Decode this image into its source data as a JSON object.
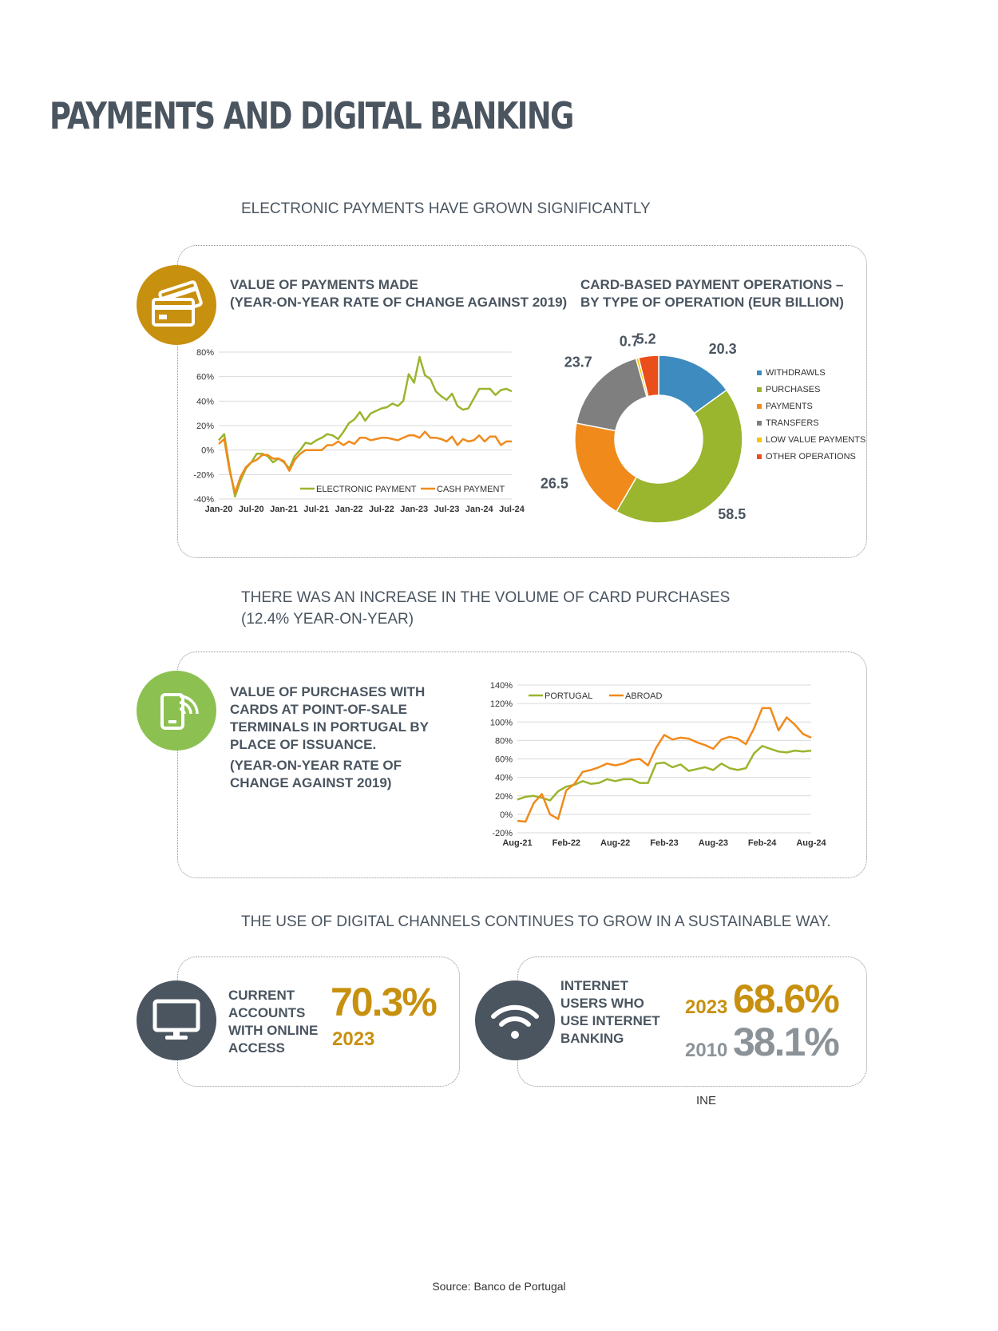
{
  "title": "PAYMENTS AND DIGITAL BANKING",
  "section1": {
    "heading": "ELECTRONIC PAYMENTS HAVE GROWN SIGNIFICANTLY",
    "line_chart_title_1": "VALUE OF PAYMENTS MADE",
    "line_chart_title_2": "(YEAR-ON-YEAR RATE OF CHANGE AGAINST 2019)",
    "donut_title_1": "CARD-BASED PAYMENT OPERATIONS –",
    "donut_title_2": "BY TYPE OF OPERATION (EUR BILLION)"
  },
  "section2": {
    "heading_1": "THERE WAS AN INCREASE IN THE VOLUME OF CARD PURCHASES",
    "heading_2": "(12.4% YEAR-ON-YEAR)",
    "text_1": "VALUE OF PURCHASES WITH",
    "text_2": "CARDS AT POINT-OF-SALE",
    "text_3": "TERMINALS IN PORTUGAL BY",
    "text_4": "PLACE OF ISSUANCE.",
    "text_5": "(YEAR-ON-YEAR RATE OF",
    "text_6": "CHANGE AGAINST 2019)"
  },
  "section3": {
    "heading": "THE USE OF DIGITAL CHANNELS CONTINUES TO GROW IN A SUSTAINABLE WAY.",
    "card1_text_1": "CURRENT",
    "card1_text_2": "ACCOUNTS",
    "card1_text_3": "WITH ONLINE",
    "card1_text_4": "ACCESS",
    "card1_value": "70.3%",
    "card1_year": "2023",
    "card2_text_1": "INTERNET",
    "card2_text_2": "USERS WHO",
    "card2_text_3": "USE INTERNET",
    "card2_text_4": "BANKING",
    "card2_year_a": "2023",
    "card2_value_a": "68.6%",
    "card2_year_b": "2010",
    "card2_value_b": "38.1%",
    "card2_source": "INE"
  },
  "footer_source": "Source: Banco de Portugal",
  "colors": {
    "green": "#9ab52e",
    "orange": "#f08a1b",
    "blue": "#3d8bbf",
    "grey": "#7f7f7f",
    "yellow": "#f7c300",
    "red": "#e94e1b",
    "gold": "#c8900f",
    "slate": "#4a5560",
    "icon_green": "#8cc152"
  },
  "chart_data": [
    {
      "type": "line",
      "title": "VALUE OF PAYMENTS MADE (YEAR-ON-YEAR RATE OF CHANGE AGAINST 2019)",
      "x_ticks": [
        "Jan-20",
        "Jul-20",
        "Jan-21",
        "Jul-21",
        "Jan-22",
        "Jul-22",
        "Jan-23",
        "Jul-23",
        "Jan-24",
        "Jul-24"
      ],
      "y_ticks": [
        "80%",
        "60%",
        "40%",
        "20%",
        "0%",
        "-20%",
        "-40%"
      ],
      "ylim": [
        -40,
        80
      ],
      "x_start": "Jan-20",
      "legend_position": "bottom-right",
      "series": [
        {
          "name": "ELECTRONIC PAYMENT",
          "color": "#9ab52e",
          "values": [
            8,
            13,
            -15,
            -38,
            -25,
            -15,
            -10,
            -3,
            -3,
            -5,
            -10,
            -7,
            -10,
            -15,
            -5,
            0,
            6,
            5,
            8,
            10,
            13,
            12,
            9,
            15,
            22,
            25,
            31,
            24,
            30,
            32,
            34,
            35,
            38,
            36,
            40,
            62,
            55,
            76,
            61,
            58,
            48,
            44,
            41,
            46,
            36,
            33,
            34,
            42,
            50,
            50,
            50,
            45,
            49,
            50,
            48
          ]
        },
        {
          "name": "CASH PAYMENT",
          "color": "#f08a1b",
          "values": [
            5,
            9,
            -17,
            -35,
            -22,
            -14,
            -10,
            -8,
            -4,
            -4,
            -7,
            -7,
            -9,
            -17,
            -8,
            -3,
            0,
            0,
            0,
            0,
            4,
            4,
            7,
            4,
            7,
            5,
            10,
            10,
            8,
            9,
            10,
            10,
            9,
            8,
            10,
            12,
            12,
            10,
            15,
            10,
            10,
            9,
            7,
            11,
            4,
            9,
            7,
            8,
            12,
            7,
            11,
            11,
            4,
            7,
            7
          ]
        }
      ]
    },
    {
      "type": "pie",
      "title": "CARD-BASED PAYMENT OPERATIONS – BY TYPE OF OPERATION (EUR BILLION)",
      "legend_position": "right",
      "categories": [
        "WITHDRAWLS",
        "PURCHASES",
        "PAYMENTS",
        "TRANSFERS",
        "LOW VALUE PAYMENTS",
        "OTHER OPERATIONS"
      ],
      "values": [
        20.3,
        58.5,
        26.5,
        23.7,
        0.7,
        5.2
      ],
      "labels": [
        "20.3",
        "58.5",
        "26.5",
        "23.7",
        "0.7",
        "5.2"
      ],
      "colors": [
        "#3d8bbf",
        "#9ab52e",
        "#f08a1b",
        "#7f7f7f",
        "#f7c300",
        "#e94e1b"
      ]
    },
    {
      "type": "line",
      "title": "VALUE OF PURCHASES WITH CARDS AT POINT-OF-SALE TERMINALS IN PORTUGAL BY PLACE OF ISSUANCE. (YEAR-ON-YEAR RATE OF CHANGE AGAINST 2019)",
      "x_ticks": [
        "Aug-21",
        "Feb-22",
        "Aug-22",
        "Feb-23",
        "Aug-23",
        "Feb-24",
        "Aug-24"
      ],
      "y_ticks": [
        "140%",
        "120%",
        "100%",
        "80%",
        "60%",
        "40%",
        "20%",
        "0%",
        "-20%"
      ],
      "ylim": [
        -20,
        140
      ],
      "x_start": "Aug-21",
      "legend_position": "top-left",
      "series": [
        {
          "name": "PORTUGAL",
          "color": "#9ab52e",
          "values": [
            16,
            19,
            20,
            18,
            15,
            25,
            30,
            32,
            36,
            33,
            34,
            38,
            36,
            38,
            38,
            34,
            34,
            55,
            56,
            51,
            54,
            47,
            49,
            51,
            48,
            55,
            50,
            48,
            50,
            66,
            74,
            71,
            68,
            67,
            69,
            68,
            69
          ]
        },
        {
          "name": "ABROAD",
          "color": "#f08a1b",
          "values": [
            -7,
            -8,
            12,
            22,
            0,
            -5,
            26,
            33,
            46,
            48,
            51,
            55,
            53,
            55,
            59,
            60,
            53,
            72,
            86,
            81,
            83,
            82,
            78,
            75,
            71,
            81,
            84,
            82,
            76,
            93,
            115,
            115,
            91,
            105,
            97,
            87,
            83
          ]
        }
      ]
    }
  ]
}
